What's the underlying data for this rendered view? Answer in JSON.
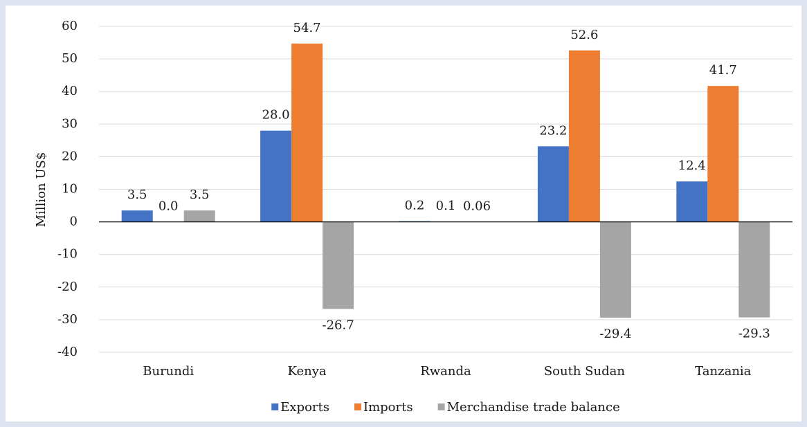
{
  "chart_data": {
    "type": "bar",
    "categories": [
      "Burundi",
      "Kenya",
      "Rwanda",
      "South Sudan",
      "Tanzania"
    ],
    "y_label": "Million US$",
    "series": [
      {
        "name": "Exports",
        "color": "#4472c4",
        "values": [
          3.5,
          28.0,
          0.2,
          23.2,
          12.4
        ],
        "value_labels": [
          "3.5",
          "28.0",
          "0.2",
          "23.2",
          "12.4"
        ]
      },
      {
        "name": "Imports",
        "color": "#ed7d31",
        "values": [
          0.0,
          54.7,
          0.1,
          52.6,
          41.7
        ],
        "value_labels": [
          "0.0",
          "54.7",
          "0.1",
          "52.6",
          "41.7"
        ]
      },
      {
        "name": "Merchandise trade balance",
        "color": "#a5a5a5",
        "values": [
          3.5,
          -26.7,
          0.06,
          -29.4,
          -29.3
        ],
        "value_labels": [
          "3.5",
          "-26.7",
          "0.06",
          "-29.4",
          "-29.3"
        ]
      }
    ],
    "ylim": [
      -40,
      60
    ],
    "yticks": [
      -40,
      -30,
      -20,
      -10,
      0,
      10,
      20,
      30,
      40,
      50,
      60
    ],
    "grid": true,
    "legend": "bottom"
  }
}
